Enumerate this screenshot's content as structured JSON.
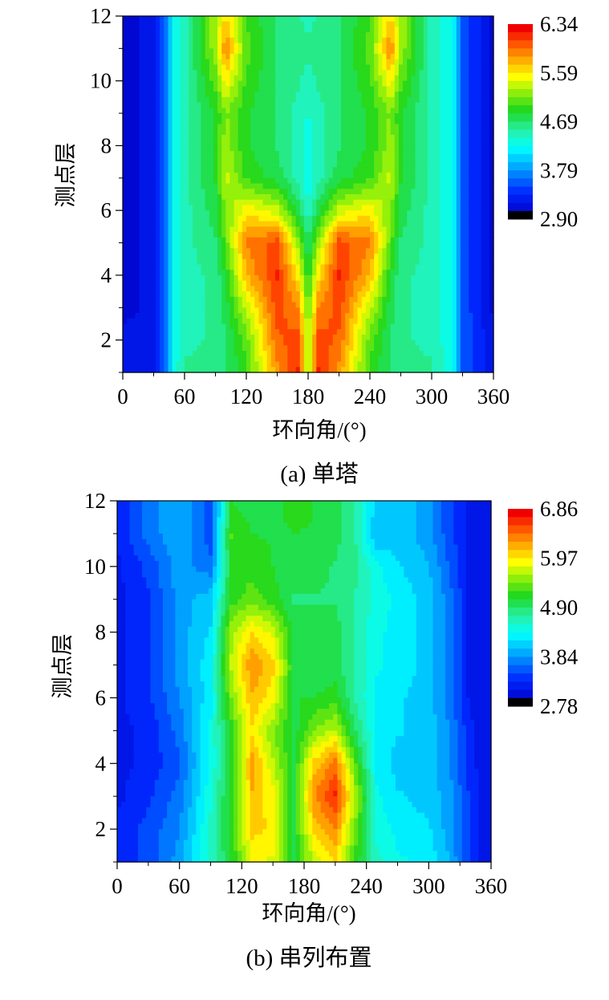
{
  "chart_data": [
    {
      "type": "heatmap",
      "panel_label": "(a)  单塔",
      "xlabel": "环向角/(°)",
      "ylabel": "测点层",
      "xlim": [
        0,
        360
      ],
      "ylim": [
        1,
        12
      ],
      "x_ticks": [
        "0",
        "60",
        "120",
        "180",
        "240",
        "300",
        "360"
      ],
      "y_ticks": [
        "2",
        "4",
        "6",
        "8",
        "10",
        "12"
      ],
      "colorbar": {
        "min": 2.9,
        "max": 6.34,
        "labels": [
          "6.34",
          "5.59",
          "4.69",
          "3.79",
          "2.90"
        ]
      },
      "x": [
        0,
        30,
        40,
        50,
        60,
        90,
        100,
        120,
        150,
        170,
        180,
        190,
        210,
        240,
        260,
        270,
        300,
        320,
        330,
        360
      ],
      "y": [
        1,
        2,
        3,
        4,
        5,
        6,
        7,
        8,
        9,
        10,
        11,
        12
      ],
      "values": [
        [
          3.1,
          3.15,
          3.5,
          4.2,
          4.5,
          4.6,
          4.6,
          4.9,
          5.8,
          6.2,
          5.0,
          6.2,
          5.8,
          4.9,
          4.6,
          4.6,
          4.5,
          4.2,
          3.5,
          3.1
        ],
        [
          3.1,
          3.15,
          3.5,
          4.2,
          4.4,
          4.5,
          4.6,
          5.0,
          6.0,
          6.1,
          5.2,
          6.1,
          6.0,
          5.0,
          4.6,
          4.5,
          4.4,
          4.2,
          3.5,
          3.1
        ],
        [
          3.0,
          3.1,
          3.5,
          4.2,
          4.4,
          4.5,
          4.7,
          5.3,
          6.1,
          5.9,
          5.0,
          5.9,
          6.1,
          5.3,
          4.7,
          4.5,
          4.4,
          4.2,
          3.5,
          3.0
        ],
        [
          3.0,
          3.1,
          3.5,
          4.2,
          4.4,
          4.5,
          4.8,
          5.7,
          6.2,
          5.5,
          4.8,
          5.5,
          6.2,
          5.7,
          4.8,
          4.5,
          4.4,
          4.2,
          3.5,
          3.0
        ],
        [
          3.0,
          3.1,
          3.5,
          4.2,
          4.4,
          4.6,
          5.0,
          5.9,
          6.1,
          5.2,
          4.6,
          5.2,
          6.1,
          5.9,
          5.0,
          4.6,
          4.4,
          4.2,
          3.5,
          3.0
        ],
        [
          3.0,
          3.1,
          3.5,
          4.2,
          4.4,
          4.7,
          5.1,
          5.5,
          5.3,
          4.7,
          4.3,
          4.7,
          5.3,
          5.5,
          5.1,
          4.7,
          4.4,
          4.2,
          3.5,
          3.0
        ],
        [
          3.0,
          3.1,
          3.5,
          4.2,
          4.4,
          4.8,
          5.3,
          4.9,
          4.7,
          4.4,
          4.2,
          4.4,
          4.7,
          4.9,
          5.3,
          4.8,
          4.4,
          4.2,
          3.5,
          3.0
        ],
        [
          3.0,
          3.1,
          3.5,
          4.2,
          4.4,
          4.8,
          5.2,
          4.8,
          4.6,
          4.4,
          4.2,
          4.4,
          4.6,
          4.8,
          5.2,
          4.8,
          4.4,
          4.2,
          3.5,
          3.0
        ],
        [
          3.0,
          3.1,
          3.5,
          4.2,
          4.4,
          4.8,
          5.1,
          4.8,
          4.6,
          4.4,
          4.3,
          4.4,
          4.6,
          4.8,
          5.1,
          4.8,
          4.4,
          4.2,
          3.5,
          3.0
        ],
        [
          3.0,
          3.1,
          3.5,
          4.2,
          4.4,
          5.0,
          5.5,
          4.9,
          4.6,
          4.5,
          4.4,
          4.5,
          4.6,
          4.9,
          5.5,
          5.0,
          4.4,
          4.2,
          3.5,
          3.0
        ],
        [
          3.0,
          3.1,
          3.5,
          4.2,
          4.4,
          5.2,
          5.9,
          5.0,
          4.6,
          4.5,
          4.5,
          4.5,
          4.6,
          5.0,
          5.9,
          5.2,
          4.4,
          4.2,
          3.5,
          3.0
        ],
        [
          3.0,
          3.1,
          3.5,
          4.2,
          4.4,
          5.2,
          5.6,
          4.9,
          4.6,
          4.5,
          4.4,
          4.5,
          4.6,
          4.9,
          5.6,
          5.2,
          4.4,
          4.2,
          3.5,
          3.0
        ]
      ]
    },
    {
      "type": "heatmap",
      "panel_label": "(b)  串列布置",
      "xlabel": "环向角/(°)",
      "ylabel": "测点层",
      "xlim": [
        0,
        360
      ],
      "ylim": [
        1,
        12
      ],
      "x_ticks": [
        "0",
        "60",
        "120",
        "180",
        "240",
        "300",
        "360"
      ],
      "y_ticks": [
        "2",
        "4",
        "6",
        "8",
        "10",
        "12"
      ],
      "colorbar": {
        "min": 2.78,
        "max": 6.86,
        "labels": [
          "6.86",
          "5.97",
          "4.90",
          "3.84",
          "2.78"
        ]
      },
      "x": [
        0,
        30,
        60,
        90,
        110,
        130,
        150,
        170,
        190,
        210,
        230,
        250,
        270,
        300,
        320,
        340,
        360
      ],
      "y": [
        1,
        2,
        3,
        4,
        5,
        6,
        7,
        8,
        9,
        10,
        11,
        12
      ],
      "values": [
        [
          3.2,
          3.4,
          3.8,
          4.5,
          5.0,
          5.8,
          5.7,
          5.0,
          5.6,
          5.9,
          5.1,
          4.5,
          4.3,
          4.2,
          3.9,
          3.3,
          3.0
        ],
        [
          3.2,
          3.4,
          3.7,
          4.5,
          5.1,
          6.0,
          5.9,
          5.0,
          6.0,
          6.3,
          5.3,
          4.4,
          4.2,
          4.1,
          3.8,
          3.3,
          3.0
        ],
        [
          3.1,
          3.3,
          3.6,
          4.4,
          5.1,
          6.1,
          5.8,
          5.0,
          6.3,
          6.7,
          5.5,
          4.3,
          4.1,
          4.0,
          3.8,
          3.3,
          3.0
        ],
        [
          3.1,
          3.2,
          3.5,
          4.3,
          5.0,
          6.2,
          5.6,
          5.0,
          6.0,
          6.4,
          5.2,
          4.2,
          4.0,
          4.0,
          3.7,
          3.2,
          3.0
        ],
        [
          3.1,
          3.2,
          3.6,
          4.3,
          5.1,
          5.9,
          5.4,
          4.9,
          5.4,
          5.6,
          4.8,
          4.2,
          4.1,
          4.0,
          3.7,
          3.2,
          3.0
        ],
        [
          3.1,
          3.3,
          3.7,
          4.2,
          5.4,
          6.1,
          5.8,
          5.0,
          5.0,
          5.1,
          4.6,
          4.2,
          4.1,
          4.0,
          3.6,
          3.1,
          3.0
        ],
        [
          3.1,
          3.3,
          3.8,
          4.2,
          5.6,
          6.3,
          6.0,
          5.0,
          4.9,
          4.9,
          4.6,
          4.3,
          4.2,
          4.0,
          3.6,
          3.1,
          3.0
        ],
        [
          3.1,
          3.3,
          3.8,
          4.1,
          5.5,
          5.9,
          5.7,
          4.9,
          4.9,
          4.9,
          4.6,
          4.3,
          4.2,
          4.0,
          3.6,
          3.1,
          3.0
        ],
        [
          3.1,
          3.3,
          3.8,
          4.0,
          5.1,
          5.3,
          5.1,
          4.8,
          4.8,
          4.8,
          4.6,
          4.4,
          4.2,
          4.0,
          3.6,
          3.1,
          3.0
        ],
        [
          3.1,
          3.4,
          3.8,
          3.6,
          5.1,
          5.1,
          5.0,
          4.9,
          4.9,
          4.8,
          4.7,
          4.3,
          4.1,
          3.9,
          3.5,
          3.1,
          3.0
        ],
        [
          3.2,
          3.6,
          3.9,
          3.4,
          5.2,
          5.0,
          5.0,
          5.0,
          5.0,
          4.9,
          4.6,
          3.9,
          4.0,
          3.8,
          3.4,
          3.1,
          3.0
        ],
        [
          3.2,
          3.6,
          3.9,
          3.4,
          5.0,
          4.9,
          4.9,
          5.1,
          5.0,
          4.9,
          4.6,
          4.0,
          4.0,
          3.8,
          3.4,
          3.1,
          3.0
        ]
      ]
    }
  ]
}
